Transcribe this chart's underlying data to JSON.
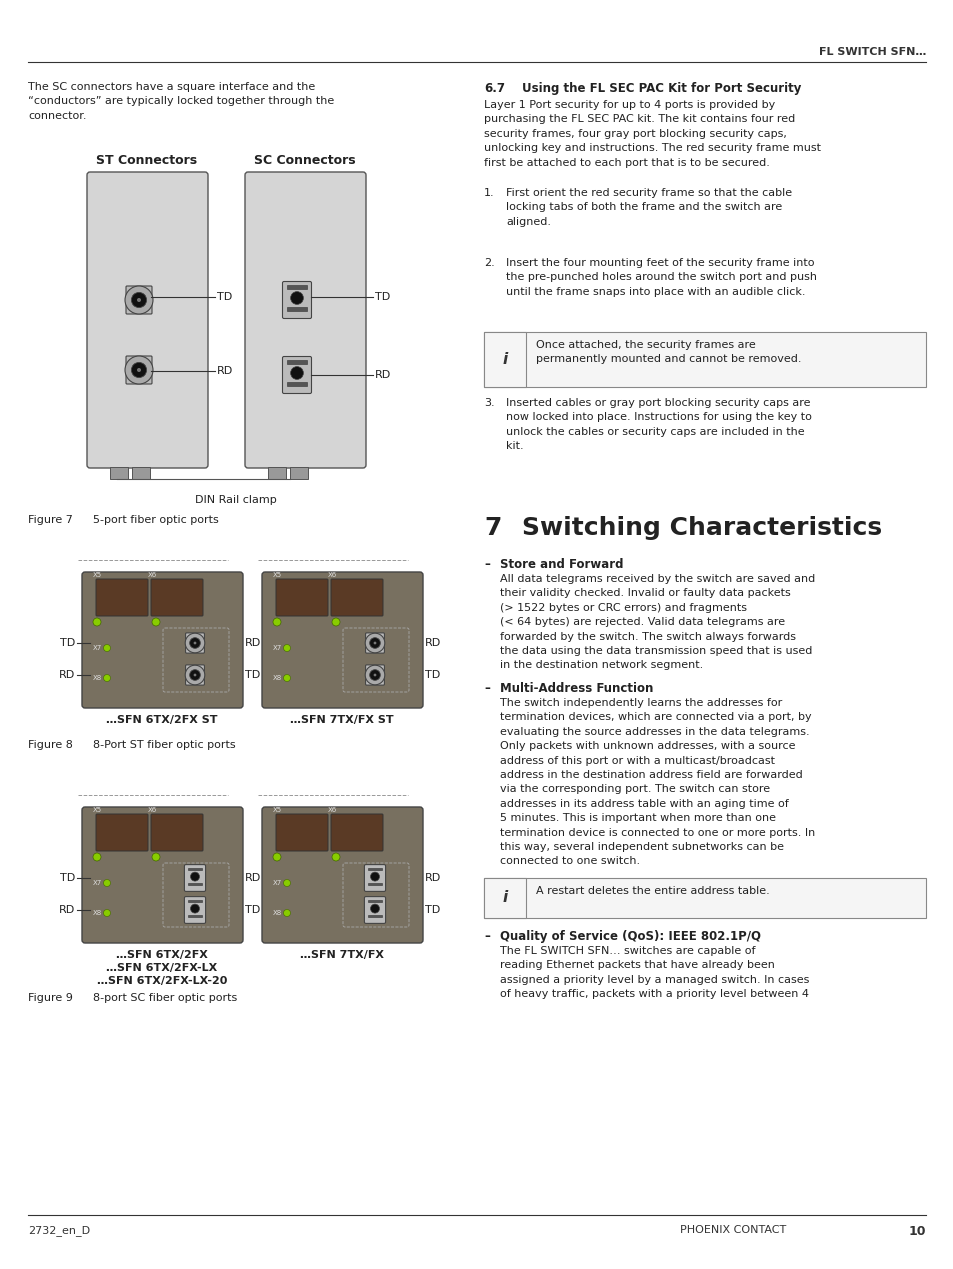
{
  "page_bg": "#ffffff",
  "header_text": "FL SWITCH SFN…",
  "footer_left": "2732_en_D",
  "footer_right": "PHOENIX CONTACT",
  "footer_page": "10",
  "top_paragraph": "The SC connectors have a square interface and the\n“conductors” are typically locked together through the\nconnector.",
  "st_label": "ST Connectors",
  "sc_label": "SC Connectors",
  "din_rail_label": "DIN Rail clamp",
  "fig7_caption_num": "Figure 7",
  "fig7_caption_text": "5-port fiber optic ports",
  "fig8_caption_num": "Figure 8",
  "fig8_caption_text": "8-Port ST fiber optic ports",
  "fig9_caption_num": "Figure 9",
  "fig9_caption_text": "8-port SC fiber optic ports",
  "sfn_6tx_2fx_st_label": "…SFN 6TX/2FX ST",
  "sfn_7tx_fx_st_label": "…SFN 7TX/FX ST",
  "sfn_6tx_2fx_label": "…SFN 6TX/2FX\n…SFN 6TX/2FX-LX\n…SFN 6TX/2FX-LX-20",
  "sfn_7tx_fx_label": "…SFN 7TX/FX",
  "sec67_num": "6.7",
  "sec67_title": "Using the FL SEC PAC Kit for Port Security",
  "sec67_body": "Layer 1 Port security for up to 4 ports is provided by\npurchasing the FL SEC PAC kit. The kit contains four red\nsecurity frames, four gray port blocking security caps,\nunlocking key and instructions. The red security frame must\nfirst be attached to each port that is to be secured.",
  "list1": "First orient the red security frame so that the cable\nlocking tabs of both the frame and the switch are\naligned.",
  "list2": "Insert the four mounting feet of the security frame into\nthe pre-punched holes around the switch port and push\nuntil the frame snaps into place with an audible click.",
  "list3": "Inserted cables or gray port blocking security caps are\nnow locked into place. Instructions for using the key to\nunlock the cables or security caps are included in the\nkit.",
  "note1": "Once attached, the security frames are\npermanently mounted and cannot be removed.",
  "sec7_num": "7",
  "sec7_title": "Switching Characteristics",
  "dash_store": "–",
  "store_title": "Store and Forward",
  "store_body": "All data telegrams received by the switch are saved and\ntheir validity checked. Invalid or faulty data packets\n(> 1522 bytes or CRC errors) and fragments\n(< 64 bytes) are rejected. Valid data telegrams are\nforwarded by the switch. The switch always forwards\nthe data using the data transmission speed that is used\nin the destination network segment.",
  "dash_multi": "–",
  "multi_title": "Multi-Address Function",
  "multi_body": "The switch independently learns the addresses for\ntermination devices, which are connected via a port, by\nevaluating the source addresses in the data telegrams.\nOnly packets with unknown addresses, with a source\naddress of this port or with a multicast/broadcast\naddress in the destination address field are forwarded\nvia the corresponding port. The switch can store\naddresses in its address table with an aging time of\n5 minutes. This is important when more than one\ntermination device is connected to one or more ports. In\nthis way, several independent subnetworks can be\nconnected to one switch.",
  "note2": "A restart deletes the entire address table.",
  "dash_qos": "–",
  "qos_title": "Quality of Service (QoS): IEEE 802.1P/Q",
  "qos_body": "The FL SWITCH SFN… switches are capable of\nreading Ethernet packets that have already been\nassigned a priority level by a managed switch. In cases\nof heavy traffic, packets with a priority level between 4",
  "device_color": "#d0d0d0",
  "switch_color": "#7a7060",
  "led_green": "#88cc00"
}
